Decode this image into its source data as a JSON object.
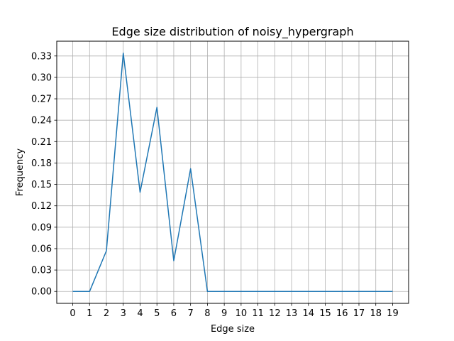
{
  "chart_data": {
    "type": "line",
    "title": "Edge size distribution of noisy_hypergraph",
    "xlabel": "Edge size",
    "ylabel": "Frequency",
    "x": [
      0,
      1,
      2,
      3,
      4,
      5,
      6,
      7,
      8,
      9,
      10,
      11,
      12,
      13,
      14,
      15,
      16,
      17,
      18,
      19
    ],
    "y": [
      0.0,
      0.0,
      0.057,
      0.334,
      0.139,
      0.258,
      0.043,
      0.172,
      0.0,
      0.0,
      0.0,
      0.0,
      0.0,
      0.0,
      0.0,
      0.0,
      0.0,
      0.0,
      0.0,
      0.0
    ],
    "xticks": [
      "0",
      "1",
      "2",
      "3",
      "4",
      "5",
      "6",
      "7",
      "8",
      "9",
      "10",
      "11",
      "12",
      "13",
      "14",
      "15",
      "16",
      "17",
      "18",
      "19"
    ],
    "yticks": [
      0.0,
      0.03,
      0.06,
      0.09,
      0.12,
      0.15,
      0.18,
      0.21,
      0.24,
      0.27,
      0.3,
      0.33
    ],
    "ytick_labels": [
      "0.00",
      "0.03",
      "0.06",
      "0.09",
      "0.12",
      "0.15",
      "0.18",
      "0.21",
      "0.24",
      "0.27",
      "0.30",
      "0.33"
    ],
    "xlim": [
      -0.95,
      19.95
    ],
    "ylim": [
      -0.0167,
      0.3507
    ],
    "grid": true,
    "line_color": "#1f77b4",
    "grid_color": "#b0b0b0"
  }
}
